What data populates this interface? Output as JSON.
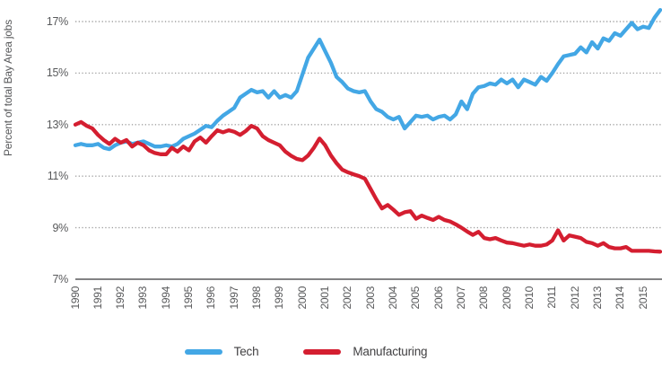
{
  "chart_data": {
    "type": "line",
    "title": "",
    "xlabel": "",
    "ylabel": "Percent of total Bay Area jobs",
    "x_start": 1990,
    "x_step_years": 0.25,
    "x_tick_labels": [
      "1990",
      "1991",
      "1992",
      "1993",
      "1994",
      "1995",
      "1996",
      "1997",
      "1998",
      "1999",
      "2000",
      "2001",
      "2002",
      "2003",
      "2004",
      "2005",
      "2006",
      "2007",
      "2008",
      "2009",
      "2010",
      "2011",
      "2012",
      "2013",
      "2014",
      "2015"
    ],
    "y_ticks": [
      7,
      9,
      11,
      13,
      15,
      17
    ],
    "y_tick_labels": [
      "7%",
      "9%",
      "11%",
      "13%",
      "15%",
      "17%"
    ],
    "ylim": [
      7,
      17.6
    ],
    "grid": "horizontal-dotted",
    "legend_position": "bottom-center",
    "series": [
      {
        "name": "Tech",
        "color": "#43a7e5",
        "values": [
          12.2,
          12.25,
          12.2,
          12.2,
          12.25,
          12.1,
          12.05,
          12.2,
          12.3,
          12.35,
          12.25,
          12.3,
          12.35,
          12.25,
          12.15,
          12.15,
          12.2,
          12.15,
          12.25,
          12.45,
          12.55,
          12.65,
          12.8,
          12.95,
          12.9,
          13.15,
          13.35,
          13.5,
          13.65,
          14.05,
          14.2,
          14.35,
          14.25,
          14.3,
          14.05,
          14.3,
          14.05,
          14.15,
          14.05,
          14.3,
          14.95,
          15.6,
          15.95,
          16.3,
          15.85,
          15.4,
          14.85,
          14.65,
          14.4,
          14.3,
          14.25,
          14.3,
          13.9,
          13.6,
          13.5,
          13.3,
          13.2,
          13.3,
          12.85,
          13.1,
          13.35,
          13.3,
          13.35,
          13.2,
          13.3,
          13.35,
          13.2,
          13.4,
          13.9,
          13.6,
          14.2,
          14.45,
          14.5,
          14.6,
          14.55,
          14.75,
          14.6,
          14.75,
          14.45,
          14.75,
          14.65,
          14.55,
          14.85,
          14.7,
          15.0,
          15.35,
          15.65,
          15.7,
          15.75,
          16.0,
          15.8,
          16.2,
          15.95,
          16.35,
          16.25,
          16.55,
          16.45,
          16.7,
          16.95,
          16.7,
          16.8,
          16.75,
          17.15,
          17.45
        ]
      },
      {
        "name": "Manufacturing",
        "color": "#d41e30",
        "values": [
          13.0,
          13.1,
          12.95,
          12.85,
          12.6,
          12.4,
          12.25,
          12.45,
          12.3,
          12.4,
          12.15,
          12.3,
          12.2,
          12.0,
          11.9,
          11.85,
          11.85,
          12.1,
          11.95,
          12.15,
          12.0,
          12.35,
          12.5,
          12.3,
          12.55,
          12.78,
          12.7,
          12.78,
          12.72,
          12.6,
          12.75,
          12.95,
          12.85,
          12.55,
          12.4,
          12.3,
          12.2,
          11.95,
          11.79,
          11.67,
          11.62,
          11.8,
          12.1,
          12.46,
          12.2,
          11.8,
          11.5,
          11.25,
          11.15,
          11.07,
          11.0,
          10.9,
          10.5,
          10.1,
          9.75,
          9.88,
          9.7,
          9.5,
          9.6,
          9.64,
          9.35,
          9.47,
          9.38,
          9.3,
          9.42,
          9.3,
          9.24,
          9.13,
          9.0,
          8.85,
          8.72,
          8.84,
          8.6,
          8.55,
          8.6,
          8.5,
          8.42,
          8.4,
          8.35,
          8.3,
          8.35,
          8.3,
          8.3,
          8.35,
          8.5,
          8.9,
          8.5,
          8.7,
          8.65,
          8.6,
          8.45,
          8.4,
          8.3,
          8.4,
          8.25,
          8.2,
          8.2,
          8.25,
          8.1,
          8.1,
          8.1,
          8.1,
          8.08,
          8.07
        ]
      }
    ]
  },
  "colors": {
    "grid": "#a3a3a3",
    "axis": "#58595b",
    "tick_text": "#58595b",
    "legend_text": "#414042",
    "background": "#ffffff"
  }
}
